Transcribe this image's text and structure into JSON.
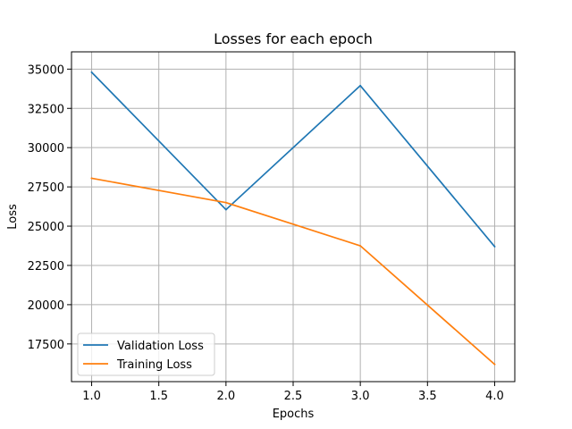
{
  "chart_data": {
    "type": "line",
    "title": "Losses for each epoch",
    "xlabel": "Epochs",
    "ylabel": "Loss",
    "x": [
      1.0,
      2.0,
      3.0,
      4.0
    ],
    "xlim": [
      0.85,
      4.15
    ],
    "ylim": [
      15100,
      36100
    ],
    "xticks": [
      "1.0",
      "1.5",
      "2.0",
      "2.5",
      "3.0",
      "3.5",
      "4.0"
    ],
    "yticks": [
      "17500",
      "20000",
      "22500",
      "25000",
      "27500",
      "30000",
      "32500",
      "35000"
    ],
    "grid": true,
    "legend_position": "lower-left",
    "series": [
      {
        "name": "Validation Loss",
        "color": "#1f77b4",
        "values": [
          34800,
          26050,
          33950,
          23700
        ]
      },
      {
        "name": "Training Loss",
        "color": "#ff7f0e",
        "values": [
          28050,
          26500,
          23750,
          16200
        ]
      }
    ]
  }
}
